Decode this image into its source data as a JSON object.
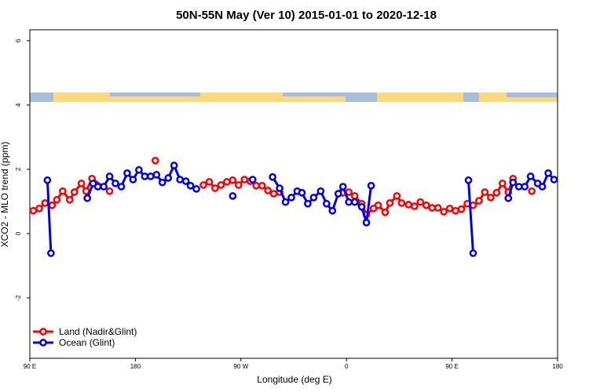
{
  "chart_data": {
    "type": "line",
    "title": "50N-55N May (Ver 10)   2015-01-01 to 2020-12-18",
    "x_label": "Longitude (deg E)",
    "y_label": "XCO2 - MLO trend (ppm)",
    "xlim": [
      90,
      540
    ],
    "ylim": [
      -3.88,
      6.34
    ],
    "xticks": [
      {
        "value": 90,
        "label": "90 E"
      },
      {
        "value": 180,
        "label": "180"
      },
      {
        "value": 270,
        "label": "90 W"
      },
      {
        "value": 360,
        "label": "0"
      },
      {
        "value": 450,
        "label": "90 E"
      },
      {
        "value": 540,
        "label": "180"
      }
    ],
    "yticks": [
      -2,
      0,
      2,
      4,
      6
    ],
    "legend_position": "bottom-left",
    "series": [
      {
        "name": "Land (Nadir&Glint)",
        "color": "#ff0000",
        "x": [
          93,
          98,
          103,
          109,
          113,
          118,
          124,
          128,
          134,
          138,
          143,
          158,
          null,
          197,
          null,
          238,
          243,
          248,
          253,
          258,
          263,
          268,
          273,
          278,
          283,
          288,
          293,
          298,
          303,
          null,
          353,
          357,
          362,
          367,
          373,
          377,
          383,
          387,
          393,
          397,
          403,
          407,
          413,
          418,
          423,
          428,
          433,
          438,
          443,
          448,
          453,
          458,
          463,
          468,
          473,
          478,
          483,
          488,
          493,
          498,
          502,
          null,
          518
        ],
        "values": [
          0.71,
          0.78,
          0.95,
          0.88,
          1.05,
          1.32,
          1.05,
          1.29,
          1.56,
          1.32,
          1.71,
          1.32,
          null,
          2.27,
          null,
          1.51,
          1.61,
          1.41,
          1.51,
          1.61,
          1.66,
          1.51,
          1.68,
          1.63,
          1.49,
          1.49,
          1.34,
          1.24,
          1.29,
          null,
          1.24,
          1.27,
          1.29,
          1.17,
          0.93,
          0.59,
          0.78,
          0.88,
          0.66,
          0.95,
          1.17,
          0.95,
          0.9,
          0.85,
          0.98,
          0.88,
          0.8,
          0.8,
          0.68,
          0.78,
          0.71,
          0.76,
          0.93,
          0.88,
          1.02,
          1.29,
          1.12,
          1.27,
          1.56,
          1.29,
          1.71,
          null,
          1.32
        ]
      },
      {
        "name": "Ocean (Glint)",
        "color": "#0000ee",
        "x": [
          105,
          108,
          null,
          139,
          144,
          148,
          153,
          158,
          163,
          168,
          173,
          178,
          183,
          188,
          193,
          198,
          203,
          208,
          213,
          218,
          223,
          227,
          232,
          null,
          263,
          null,
          280,
          null,
          297,
          303,
          308,
          313,
          318,
          322,
          327,
          332,
          338,
          343,
          348,
          353,
          357,
          362,
          367,
          373,
          377,
          381,
          null,
          464,
          468,
          null,
          498,
          502,
          507,
          512,
          517,
          523,
          527,
          532,
          537
        ],
        "values": [
          1.66,
          -0.61,
          null,
          1.1,
          1.56,
          1.46,
          1.46,
          1.78,
          1.56,
          1.46,
          1.88,
          1.68,
          1.98,
          1.78,
          1.78,
          1.83,
          1.59,
          1.73,
          2.12,
          1.68,
          1.63,
          1.49,
          1.39,
          null,
          1.17,
          null,
          1.68,
          null,
          1.76,
          1.41,
          0.98,
          1.12,
          1.32,
          1.27,
          0.93,
          1.12,
          1.32,
          0.93,
          0.71,
          1.24,
          1.46,
          0.98,
          0.98,
          0.83,
          0.34,
          1.49,
          null,
          1.66,
          -0.61,
          null,
          1.1,
          1.59,
          1.46,
          1.46,
          1.78,
          1.56,
          1.46,
          1.88,
          1.68
        ]
      }
    ]
  }
}
